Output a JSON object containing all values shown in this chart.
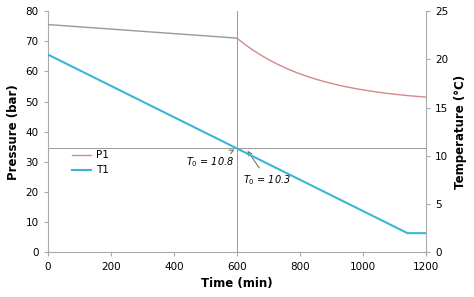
{
  "xlabel": "Time (min)",
  "ylabel_left": "Pressure (bar)",
  "ylabel_right": "Temperature (°C)",
  "xlim": [
    0,
    1200
  ],
  "ylim_left": [
    0,
    80
  ],
  "ylim_right": [
    0,
    25
  ],
  "xticks": [
    0,
    200,
    400,
    600,
    800,
    1000,
    1200
  ],
  "yticks_left": [
    0,
    10,
    20,
    30,
    40,
    50,
    60,
    70,
    80
  ],
  "yticks_right": [
    0,
    5,
    10,
    15,
    20,
    25
  ],
  "p1_color": "#d4888a",
  "p1_gray_color": "#999999",
  "t1_color": "#3ab5d8",
  "annot_line_color": "#999999",
  "hline_y_left": 34.5,
  "vline_x": 600,
  "ta1_label": "$T_0$ = 10.8",
  "ta2_label": "$T_0$ = 10.3",
  "legend_p1": "P1",
  "legend_t1": "T1",
  "bg_color": "#f5f5f5",
  "p1_start": 75.5,
  "p1_end_before600": 71.0,
  "p1_end_after": 49.5,
  "t1_start_celsius": 20.5,
  "t1_end_celsius": 2.0,
  "t1_end_time": 1140
}
